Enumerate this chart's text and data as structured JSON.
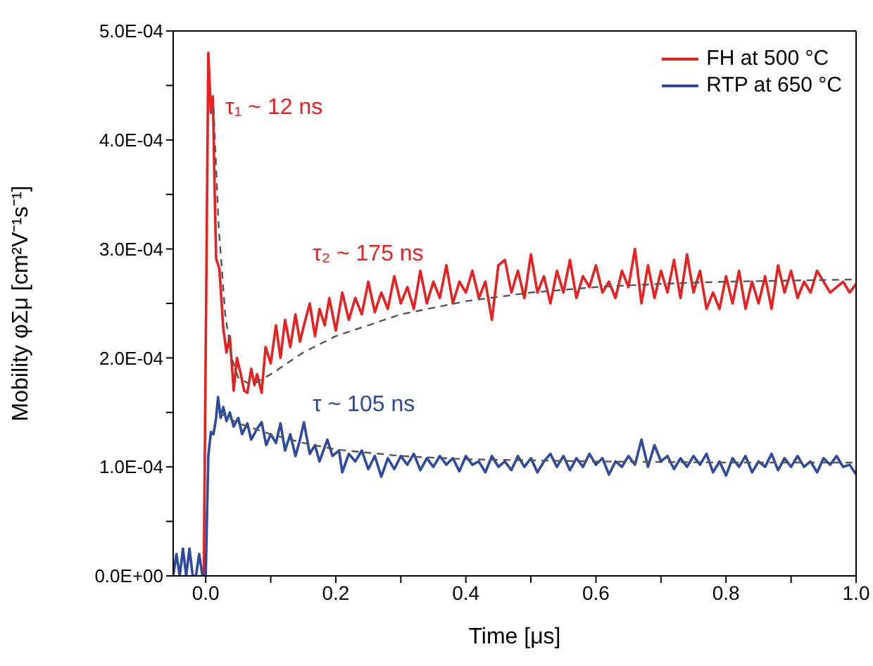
{
  "chart_data": {
    "type": "line",
    "xlabel": "Time [μs]",
    "ylabel": "Mobility φΣμ [cm²V⁻¹s⁻¹]",
    "xlim": [
      -0.05,
      1.0
    ],
    "xticks": [
      {
        "value": 0,
        "label": "0.0"
      },
      {
        "value": 0.1,
        "label": null
      },
      {
        "value": 0.2,
        "label": "0.2"
      },
      {
        "value": 0.3,
        "label": null
      },
      {
        "value": 0.4,
        "label": "0.4"
      },
      {
        "value": 0.5,
        "label": null
      },
      {
        "value": 0.6,
        "label": "0.6"
      },
      {
        "value": 0.7,
        "label": null
      },
      {
        "value": 0.8,
        "label": "0.8"
      },
      {
        "value": 0.9,
        "label": null
      },
      {
        "value": 1,
        "label": "1.0"
      }
    ],
    "ylim": [
      0,
      0.0005
    ],
    "yticks": [
      {
        "value": 0,
        "label": "0.0E+00"
      },
      {
        "value": 5e-05,
        "label": null
      },
      {
        "value": 0.0001,
        "label": "1.0E-04"
      },
      {
        "value": 0.00015,
        "label": null
      },
      {
        "value": 0.0002,
        "label": "2.0E-04"
      },
      {
        "value": 0.00025,
        "label": null
      },
      {
        "value": 0.0003,
        "label": "3.0E-04"
      },
      {
        "value": 0.00035,
        "label": null
      },
      {
        "value": 0.0004,
        "label": "4.0E-04"
      },
      {
        "value": 0.00045,
        "label": null
      },
      {
        "value": 0.0005,
        "label": "5.0E-04"
      }
    ],
    "grid": false,
    "legend": "top right",
    "marker": "none",
    "annotations": [
      "τ₁ ~ 12 ns",
      "τ₂ ~ 175 ns",
      "τ ~ 105 ns"
    ],
    "series": [
      {
        "name": "FH at 500 °C",
        "color": "#e8201f",
        "line_style": "solid",
        "x": [
          -0.003,
          0.004,
          0.008,
          0.011,
          0.014,
          0.016,
          0.021,
          0.027,
          0.032,
          0.037,
          0.043,
          0.048,
          0.054,
          0.059,
          0.064,
          0.07,
          0.075,
          0.079,
          0.086,
          0.092,
          0.1,
          0.108,
          0.115,
          0.122,
          0.13,
          0.138,
          0.145,
          0.151,
          0.16,
          0.168,
          0.175,
          0.183,
          0.19,
          0.2,
          0.21,
          0.22,
          0.23,
          0.24,
          0.25,
          0.26,
          0.27,
          0.28,
          0.29,
          0.3,
          0.31,
          0.32,
          0.33,
          0.34,
          0.35,
          0.36,
          0.37,
          0.38,
          0.39,
          0.4,
          0.41,
          0.42,
          0.43,
          0.44,
          0.45,
          0.46,
          0.47,
          0.48,
          0.49,
          0.5,
          0.51,
          0.52,
          0.53,
          0.54,
          0.55,
          0.56,
          0.57,
          0.58,
          0.59,
          0.6,
          0.61,
          0.62,
          0.63,
          0.64,
          0.65,
          0.66,
          0.67,
          0.68,
          0.69,
          0.7,
          0.71,
          0.72,
          0.73,
          0.74,
          0.75,
          0.76,
          0.77,
          0.78,
          0.79,
          0.8,
          0.81,
          0.82,
          0.83,
          0.84,
          0.85,
          0.86,
          0.87,
          0.88,
          0.89,
          0.9,
          0.91,
          0.92,
          0.93,
          0.94,
          0.95,
          0.96,
          0.97,
          0.98,
          0.99,
          1.0
        ],
        "values": [
          0,
          0.00048,
          0.000425,
          0.00044,
          0.000347,
          0.000291,
          0.000282,
          0.000227,
          0.000205,
          0.00022,
          0.00017,
          0.0002,
          0.000185,
          0.00017,
          0.000168,
          0.00019,
          0.000175,
          0.000185,
          0.000168,
          0.00021,
          0.000195,
          0.00023,
          0.0002,
          0.000235,
          0.00021,
          0.00024,
          0.000215,
          0.00023,
          0.00025,
          0.00022,
          0.000245,
          0.00023,
          0.000255,
          0.000225,
          0.00026,
          0.000235,
          0.000255,
          0.00024,
          0.00027,
          0.000242,
          0.00026,
          0.000245,
          0.000275,
          0.00025,
          0.000265,
          0.000245,
          0.00028,
          0.00025,
          0.00027,
          0.000255,
          0.000285,
          0.00025,
          0.00027,
          0.00026,
          0.00028,
          0.000255,
          0.00027,
          0.000235,
          0.000285,
          0.00029,
          0.00026,
          0.00028,
          0.000255,
          0.000295,
          0.00026,
          0.000275,
          0.00025,
          0.00028,
          0.00026,
          0.00029,
          0.000255,
          0.000275,
          0.000265,
          0.000285,
          0.00026,
          0.00027,
          0.000255,
          0.00028,
          0.000265,
          0.0003,
          0.00025,
          0.000285,
          0.000255,
          0.00028,
          0.00026,
          0.00029,
          0.000255,
          0.000295,
          0.00026,
          0.00028,
          0.000245,
          0.00026,
          0.000245,
          0.000275,
          0.00025,
          0.00028,
          0.000245,
          0.00027,
          0.00025,
          0.000275,
          0.000245,
          0.000285,
          0.00026,
          0.00028,
          0.000255,
          0.00027,
          0.00026,
          0.00028,
          0.00027,
          0.00026,
          0.000265,
          0.00027,
          0.00026,
          0.000268
        ]
      },
      {
        "name": "RTP at 650 °C",
        "color": "#2b4aa0",
        "line_style": "solid",
        "x": [
          -0.05,
          -0.045,
          -0.04,
          -0.035,
          -0.03,
          -0.025,
          -0.02,
          -0.015,
          -0.01,
          -0.005,
          0.0,
          0.004,
          0.008,
          0.012,
          0.016,
          0.019,
          0.023,
          0.027,
          0.032,
          0.037,
          0.043,
          0.05,
          0.056,
          0.064,
          0.07,
          0.079,
          0.086,
          0.093,
          0.1,
          0.108,
          0.115,
          0.122,
          0.13,
          0.138,
          0.145,
          0.151,
          0.16,
          0.168,
          0.175,
          0.187,
          0.195,
          0.205,
          0.21,
          0.22,
          0.23,
          0.24,
          0.25,
          0.26,
          0.27,
          0.28,
          0.29,
          0.3,
          0.31,
          0.32,
          0.33,
          0.34,
          0.35,
          0.36,
          0.37,
          0.38,
          0.39,
          0.4,
          0.41,
          0.42,
          0.43,
          0.44,
          0.45,
          0.46,
          0.47,
          0.48,
          0.49,
          0.5,
          0.51,
          0.52,
          0.53,
          0.54,
          0.55,
          0.56,
          0.57,
          0.58,
          0.59,
          0.6,
          0.61,
          0.62,
          0.63,
          0.64,
          0.65,
          0.66,
          0.67,
          0.68,
          0.69,
          0.7,
          0.71,
          0.72,
          0.73,
          0.74,
          0.75,
          0.76,
          0.77,
          0.78,
          0.79,
          0.8,
          0.81,
          0.82,
          0.83,
          0.84,
          0.85,
          0.86,
          0.87,
          0.88,
          0.89,
          0.9,
          0.91,
          0.92,
          0.93,
          0.94,
          0.95,
          0.96,
          0.97,
          0.98,
          0.99,
          1.0
        ],
        "values": [
          0,
          2e-05,
          0,
          2.5e-05,
          0,
          2.5e-05,
          0,
          0,
          2e-05,
          0,
          0,
          0.00011,
          0.000132,
          0.00013,
          0.000145,
          0.000164,
          0.000145,
          0.000155,
          0.000142,
          0.00015,
          0.000137,
          0.000145,
          0.00013,
          0.00014,
          0.000125,
          0.000135,
          0.000141,
          0.00012,
          0.00013,
          0.000122,
          0.00014,
          0.000115,
          0.00013,
          0.00011,
          0.000125,
          0.000141,
          0.000112,
          0.00012,
          0.000105,
          0.000125,
          0.00011,
          0.000115,
          9.5e-05,
          0.000112,
          0.000105,
          0.000115,
          9.8e-05,
          0.00011,
          9.1e-05,
          0.000108,
          9.8e-05,
          0.00011,
          0.000102,
          0.000112,
          9.7e-05,
          0.000108,
          0.0001,
          0.00011,
          0.000102,
          0.000108,
          9.6e-05,
          0.00011,
          0.000102,
          0.000105,
          9.5e-05,
          0.00011,
          0.0001,
          0.000105,
          9.7e-05,
          0.00011,
          0.0001,
          0.000108,
          9.5e-05,
          0.000105,
          0.000112,
          0.0001,
          0.00011,
          9.7e-05,
          0.000108,
          0.0001,
          0.000112,
          0.000102,
          0.000108,
          9.3e-05,
          0.000105,
          0.0001,
          0.00011,
          0.000102,
          0.000125,
          0.0001,
          0.00012,
          0.000105,
          0.00011,
          9.8e-05,
          0.000108,
          0.0001,
          0.00011,
          0.000102,
          0.000112,
          9.5e-05,
          0.000105,
          9.2e-05,
          0.000108,
          0.0001,
          0.00011,
          9.5e-05,
          0.000105,
          0.0001,
          0.000112,
          9.7e-05,
          0.000108,
          0.0001,
          0.00011,
          0.0001,
          0.000105,
          9.5e-05,
          0.000108,
          0.000102,
          0.00011,
          0.0001,
          0.000102,
          9.3e-05
        ]
      },
      {
        "color": "#555555",
        "line_style": "dashed",
        "x": [
          0.012,
          0.02,
          0.03,
          0.04,
          0.05,
          0.07,
          0.1,
          0.15,
          0.2,
          0.3,
          0.4,
          0.5,
          0.6,
          0.7,
          0.8,
          0.9,
          1.0
        ],
        "values": [
          0.00043,
          0.00032,
          0.00024,
          0.0002,
          0.000182,
          0.000175,
          0.000185,
          0.000205,
          0.00022,
          0.00024,
          0.000252,
          0.00026,
          0.000265,
          0.000268,
          0.00027,
          0.000271,
          0.000272
        ]
      },
      {
        "color": "#555555",
        "line_style": "dashed",
        "x": [
          0.02,
          0.05,
          0.1,
          0.15,
          0.2,
          0.3,
          0.4,
          0.6,
          0.8,
          1.0
        ],
        "values": [
          0.00015,
          0.00014,
          0.00013,
          0.000122,
          0.000116,
          0.00011,
          0.000107,
          0.000105,
          0.000104,
          0.000104
        ]
      }
    ]
  }
}
